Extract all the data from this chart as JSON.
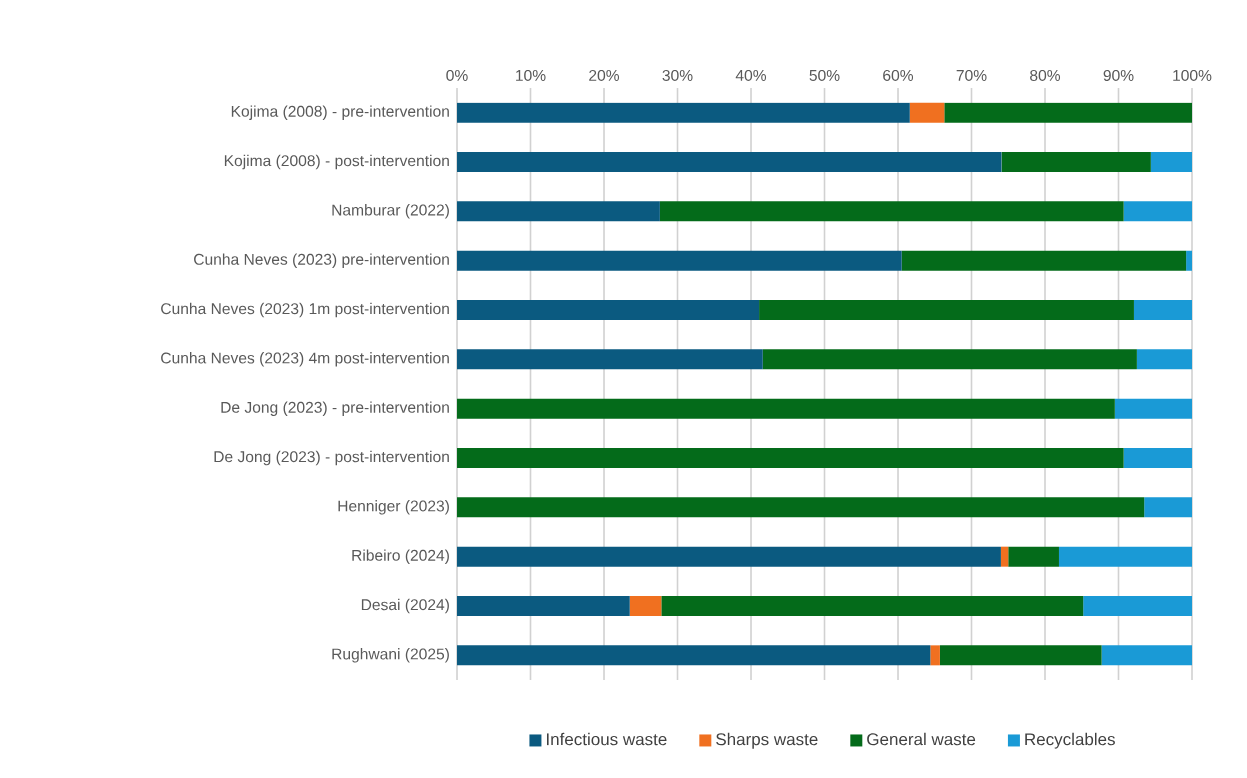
{
  "chart_data": {
    "type": "bar",
    "orientation": "horizontal",
    "stacked": true,
    "categories": [
      "Kojima (2008) - pre-intervention",
      "Kojima (2008) - post-intervention",
      "Namburar (2022)",
      "Cunha Neves (2023)  pre-intervention",
      "Cunha Neves (2023)  1m post-intervention",
      "Cunha Neves (2023)  4m post-intervention",
      "De Jong (2023) - pre-intervention",
      "De Jong (2023) - post-intervention",
      "Henniger (2023)",
      "Ribeiro (2024)",
      "Desai (2024)",
      "Rughwani (2025)"
    ],
    "series": [
      {
        "name": "Infectious waste",
        "color": "#0b5a80",
        "values": [
          61.6,
          74.1,
          27.6,
          60.5,
          41.1,
          41.6,
          0,
          0,
          0,
          74.0,
          23.5,
          64.4
        ]
      },
      {
        "name": "Sharps waste",
        "color": "#f07020",
        "values": [
          4.7,
          0,
          0,
          0,
          0,
          0,
          0,
          0,
          0,
          1.0,
          4.3,
          1.3
        ]
      },
      {
        "name": "General waste",
        "color": "#046b1a",
        "values": [
          33.7,
          20.3,
          63.1,
          38.7,
          51.0,
          50.9,
          89.5,
          90.7,
          93.5,
          6.9,
          57.4,
          22.0
        ]
      },
      {
        "name": "Recyclables",
        "color": "#1a9ad6",
        "values": [
          0,
          5.6,
          9.3,
          0.8,
          7.9,
          7.5,
          10.5,
          9.3,
          6.5,
          18.1,
          14.8,
          12.3
        ]
      }
    ],
    "xlim": [
      0,
      100
    ],
    "xticks": [
      {
        "value": 0,
        "label": "0%"
      },
      {
        "value": 10,
        "label": "10%"
      },
      {
        "value": 20,
        "label": "20%"
      },
      {
        "value": 30,
        "label": "30%"
      },
      {
        "value": 40,
        "label": "40%"
      },
      {
        "value": 50,
        "label": "50%"
      },
      {
        "value": 60,
        "label": "60%"
      },
      {
        "value": 70,
        "label": "70%"
      },
      {
        "value": 80,
        "label": "80%"
      },
      {
        "value": 90,
        "label": "90%"
      },
      {
        "value": 100,
        "label": "100%"
      }
    ],
    "grid": "x",
    "legend": "bottom"
  }
}
